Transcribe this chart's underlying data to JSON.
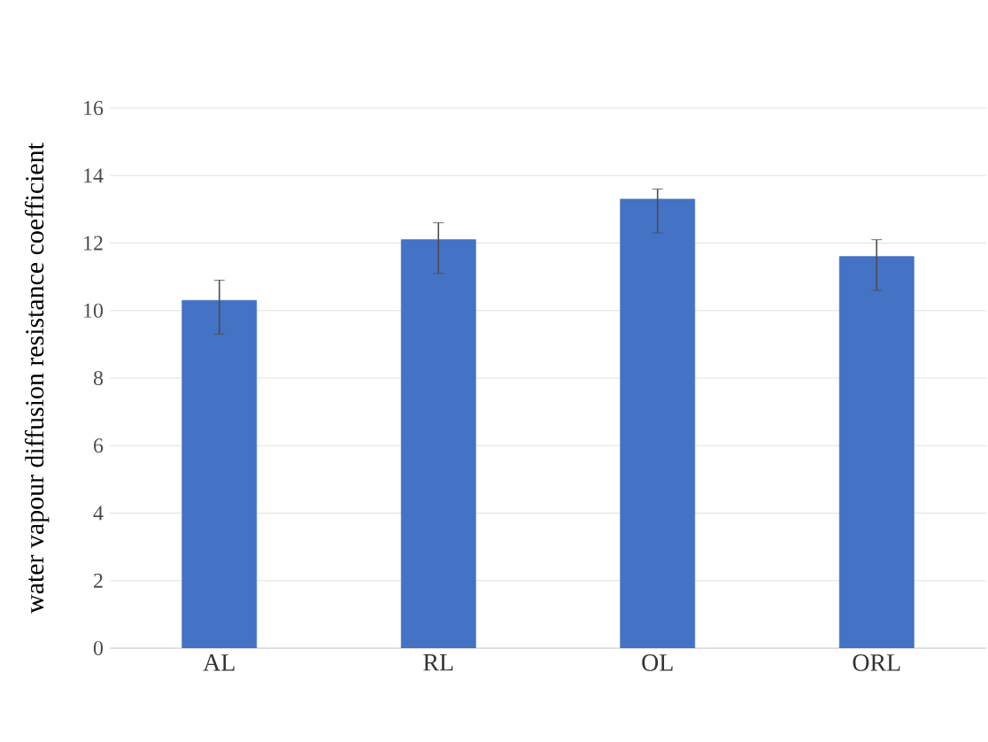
{
  "chart_data": {
    "type": "bar",
    "ylabel": "water vapour diffusion resistance coefficient",
    "categories": [
      "AL",
      "RL",
      "OL",
      "ORL"
    ],
    "values": [
      10.3,
      12.1,
      13.3,
      11.6
    ],
    "errors": [
      [
        9.3,
        10.9
      ],
      [
        11.1,
        12.6
      ],
      [
        12.3,
        13.6
      ],
      [
        10.6,
        12.1
      ]
    ],
    "color": "#4472c4",
    "ylim": [
      0,
      16
    ],
    "yticks": [
      0,
      2,
      4,
      6,
      8,
      10,
      12,
      14,
      16
    ],
    "grid": "y"
  }
}
